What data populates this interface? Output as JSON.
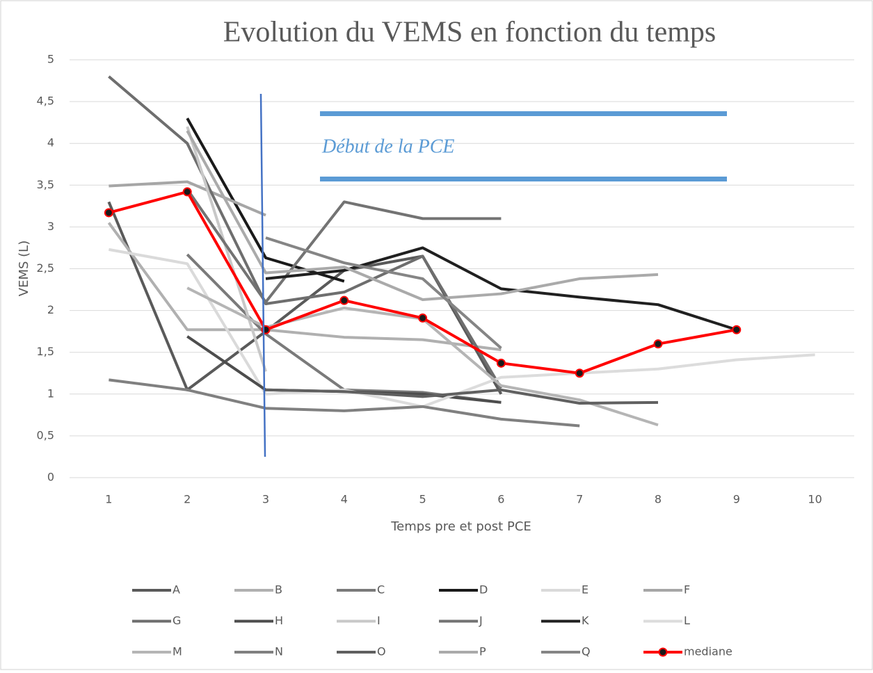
{
  "chart_data": {
    "type": "line",
    "title": "Evolution du VEMS en fonction du temps",
    "x_label": "Temps pre et post PCE",
    "y_label": "VEMS (L)",
    "annotation": "Début de la PCE",
    "categories": [
      "1",
      "2",
      "3",
      "4",
      "5",
      "6",
      "7",
      "8",
      "9",
      "10"
    ],
    "ylim": [
      0,
      5
    ],
    "yticks": [
      0,
      {
        "value": 0.5,
        "label": "0,5"
      },
      1,
      {
        "value": 1.5,
        "label": "1,5"
      },
      2,
      {
        "value": 2.5,
        "label": "2,5"
      },
      3,
      {
        "value": 3.5,
        "label": "3,5"
      },
      4,
      {
        "value": 4.5,
        "label": "4,5"
      },
      5
    ],
    "grid": true,
    "legend": "bottom",
    "series": [
      {
        "name": "A",
        "color": "#5a5a5a",
        "values": [
          3.3,
          1.05,
          1.75,
          2.48,
          2.65,
          1.0,
          null,
          null,
          null,
          null
        ]
      },
      {
        "name": "B",
        "color": "#b0b0b0",
        "values": [
          3.05,
          1.77,
          1.77,
          1.68,
          1.65,
          1.53,
          null,
          null,
          null,
          null
        ]
      },
      {
        "name": "C",
        "color": "#7a7a7a",
        "values": [
          null,
          2.67,
          1.72,
          1.05,
          1.02,
          0.9,
          null,
          null,
          null,
          null
        ]
      },
      {
        "name": "D",
        "color": "#1a1a1a",
        "values": [
          null,
          4.3,
          2.63,
          2.35,
          null,
          null,
          null,
          null,
          null,
          null
        ]
      },
      {
        "name": "E",
        "color": "#dadada",
        "values": [
          2.73,
          2.56,
          1.0,
          null,
          null,
          null,
          null,
          null,
          null,
          null
        ]
      },
      {
        "name": "F",
        "color": "#a6a6a6",
        "values": [
          3.49,
          3.54,
          3.14,
          null,
          null,
          null,
          null,
          null,
          null,
          null
        ]
      },
      {
        "name": "G",
        "color": "#6e6e6e",
        "values": [
          4.8,
          4.0,
          2.08,
          2.22,
          2.65,
          1.07,
          null,
          null,
          null,
          null
        ]
      },
      {
        "name": "H",
        "color": "#4d4d4d",
        "values": [
          null,
          1.69,
          1.05,
          1.03,
          1.0,
          0.9,
          null,
          null,
          null,
          null
        ]
      },
      {
        "name": "I",
        "color": "#c8c8c8",
        "values": [
          null,
          4.2,
          1.27,
          null,
          null,
          null,
          null,
          null,
          null,
          null
        ]
      },
      {
        "name": "J",
        "color": "#737373",
        "values": [
          null,
          3.45,
          2.1,
          3.3,
          3.1,
          3.1,
          null,
          null,
          null,
          null
        ]
      },
      {
        "name": "K",
        "color": "#202020",
        "values": [
          null,
          null,
          2.38,
          2.48,
          2.75,
          2.26,
          2.16,
          2.07,
          1.77,
          null
        ]
      },
      {
        "name": "L",
        "color": "#dcdcdc",
        "values": [
          null,
          null,
          1.0,
          1.05,
          0.85,
          1.2,
          1.25,
          1.3,
          1.41,
          1.47
        ]
      },
      {
        "name": "M",
        "color": "#b5b5b5",
        "values": [
          null,
          2.27,
          1.8,
          2.03,
          1.9,
          1.1,
          0.93,
          0.63,
          null,
          null
        ]
      },
      {
        "name": "N",
        "color": "#808080",
        "values": [
          1.17,
          1.05,
          0.83,
          0.8,
          0.85,
          0.7,
          0.62,
          null,
          null,
          null
        ]
      },
      {
        "name": "O",
        "color": "#606060",
        "values": [
          null,
          null,
          1.05,
          1.03,
          0.97,
          1.05,
          0.89,
          0.9,
          null,
          null
        ]
      },
      {
        "name": "P",
        "color": "#aaaaaa",
        "values": [
          null,
          4.15,
          2.45,
          2.52,
          2.13,
          2.2,
          2.38,
          2.43,
          null,
          null
        ]
      },
      {
        "name": "Q",
        "color": "#858585",
        "values": [
          null,
          null,
          2.87,
          2.57,
          2.38,
          1.55,
          null,
          null,
          null,
          null
        ]
      },
      {
        "name": "mediane",
        "color": "#ff0000",
        "marker": true,
        "values": [
          3.17,
          3.42,
          1.77,
          2.12,
          1.91,
          1.37,
          1.25,
          1.6,
          1.77,
          null
        ]
      }
    ]
  }
}
